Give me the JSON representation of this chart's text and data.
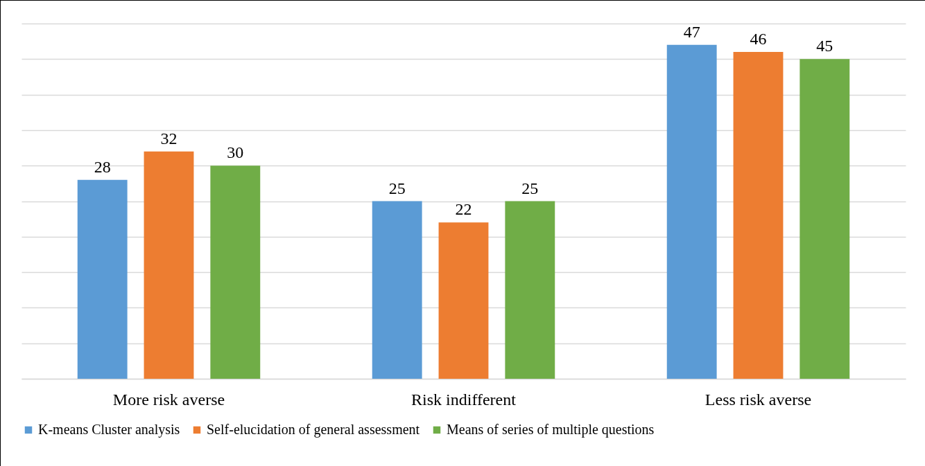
{
  "chart_data": {
    "type": "bar",
    "categories": [
      "More risk averse",
      "Risk indifferent",
      "Less risk averse"
    ],
    "series": [
      {
        "name": "K-means Cluster analysis",
        "color": "#5b9bd5",
        "values": [
          28,
          25,
          47
        ]
      },
      {
        "name": "Self-elucidation of general assessment",
        "color": "#ed7d31",
        "values": [
          32,
          22,
          46
        ]
      },
      {
        "name": "Means of series of multiple questions",
        "color": "#70ad47",
        "values": [
          30,
          25,
          45
        ]
      }
    ],
    "ylim": [
      0,
      50
    ],
    "yticks": [
      0,
      5,
      10,
      15,
      20,
      25,
      30,
      35,
      40,
      45,
      50
    ],
    "grid": "y",
    "tick_labels": "x",
    "legend": "bottom",
    "data_labels": true
  }
}
